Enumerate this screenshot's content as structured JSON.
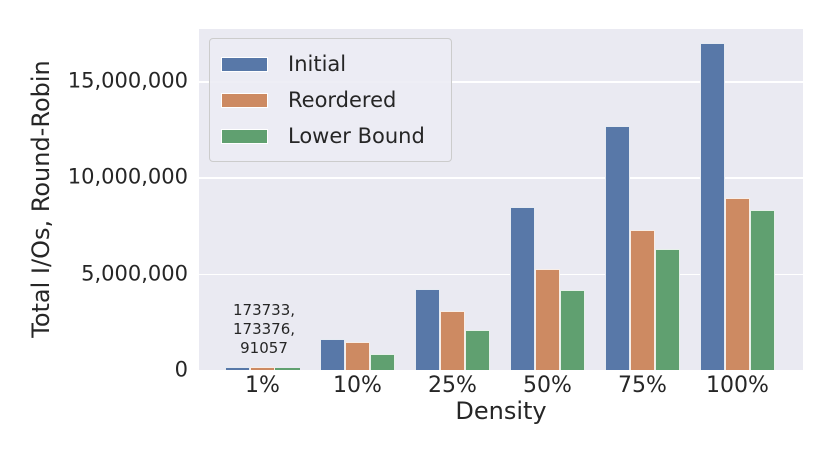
{
  "figure": {
    "background": "#ffffff",
    "plot_bg": "#eaeaf2",
    "grid_color": "#ffffff",
    "text_color": "#262626"
  },
  "chart_data": {
    "type": "bar",
    "title": "",
    "xlabel": "Density",
    "ylabel": "Total I/Os, Round-Robin",
    "categories": [
      "1%",
      "10%",
      "25%",
      "50%",
      "75%",
      "100%"
    ],
    "series": [
      {
        "name": "Initial",
        "color": "#5878a8",
        "values": [
          173733,
          1610000,
          4200000,
          8460000,
          12670000,
          16970000
        ]
      },
      {
        "name": "Reordered",
        "color": "#cd8a62",
        "values": [
          173376,
          1450000,
          3060000,
          5240000,
          7270000,
          8930000
        ]
      },
      {
        "name": "Lower Bound",
        "color": "#60a070",
        "values": [
          91057,
          830000,
          2080000,
          4150000,
          6280000,
          8300000
        ]
      }
    ],
    "ylim": [
      0,
      17700000
    ],
    "yticks": [
      {
        "value": 0,
        "label": "0"
      },
      {
        "value": 5000000,
        "label": "5,000,000"
      },
      {
        "value": 10000000,
        "label": "10,000,000"
      },
      {
        "value": 15000000,
        "label": "15,000,000"
      }
    ],
    "grid": true,
    "legend_position": "upper left",
    "annotation": {
      "lines": [
        "173733,",
        "173376,",
        "91057"
      ],
      "category": "1%"
    }
  }
}
